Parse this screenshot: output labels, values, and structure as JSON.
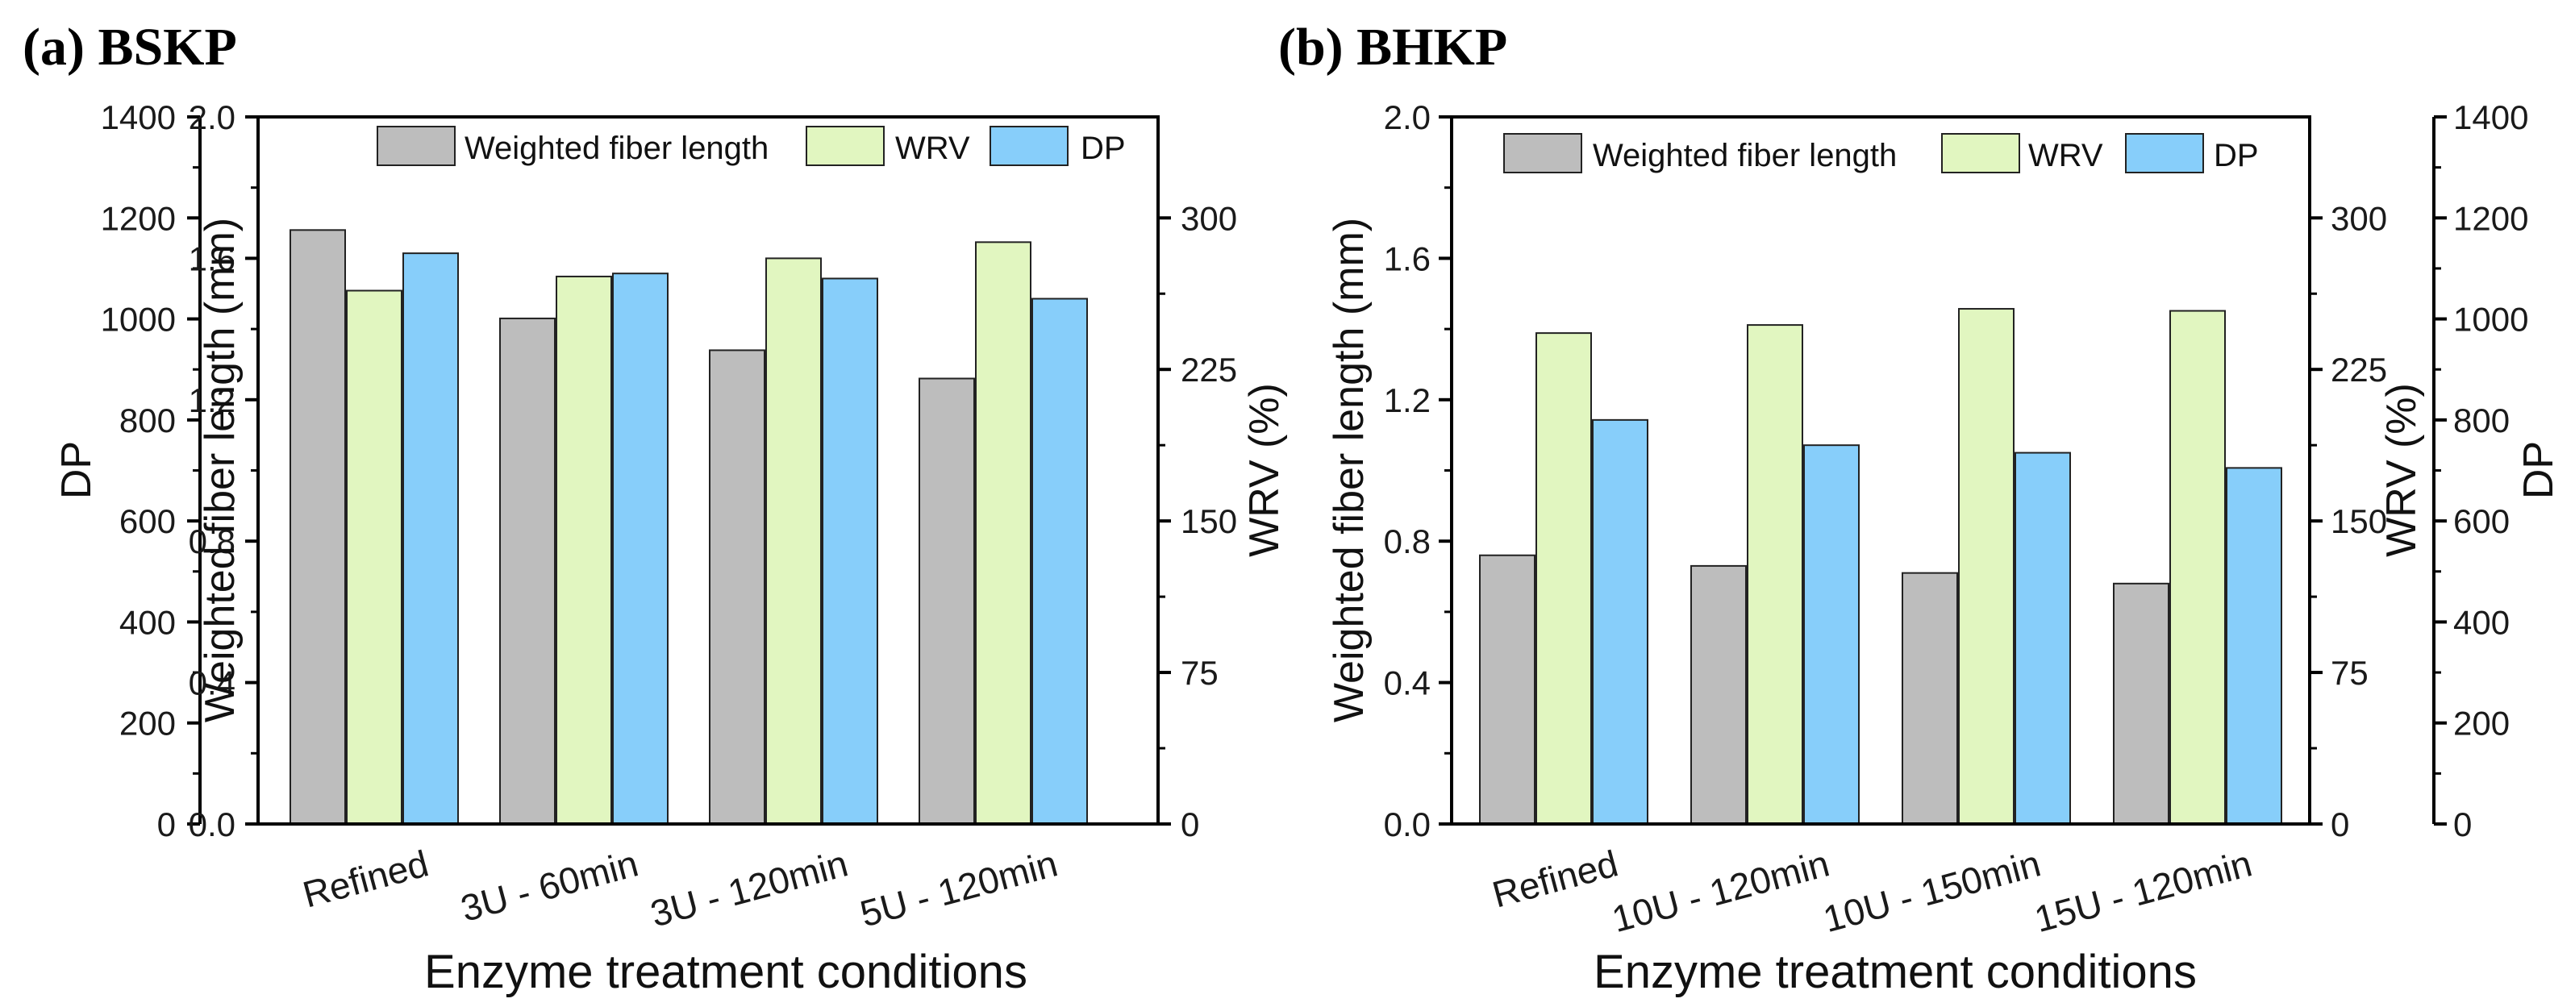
{
  "chart_data": [
    {
      "type": "bar",
      "panel_label": "(a) BSKP",
      "categories": [
        "Refined",
        "3U - 60min",
        "3U - 120min",
        "5U - 120min"
      ],
      "xlabel": "Enzyme treatment conditions",
      "series": [
        {
          "name": "Weighted fiber length",
          "axis": "fiber",
          "color": "#bdbdbd",
          "values": [
            1.68,
            1.43,
            1.34,
            1.26
          ]
        },
        {
          "name": "WRV",
          "axis": "wrv",
          "color": "#e1f6c0",
          "values": [
            264,
            271,
            280,
            288
          ]
        },
        {
          "name": "DP",
          "axis": "dp",
          "color": "#87cefa",
          "values": [
            1130,
            1090,
            1080,
            1040
          ]
        }
      ],
      "axes": {
        "fiber": {
          "label": "Weighted fiber length (mm)",
          "side": "left-inner",
          "ylim": [
            0,
            2.0
          ],
          "ticks": [
            "0.0",
            "0.4",
            "0.8",
            "1.2",
            "1.6",
            "2.0"
          ],
          "tick_values": [
            0,
            0.4,
            0.8,
            1.2,
            1.6,
            2.0
          ]
        },
        "dp": {
          "label": "DP",
          "side": "left-outer",
          "ylim": [
            0,
            1400
          ],
          "ticks": [
            "0",
            "200",
            "400",
            "600",
            "800",
            "1000",
            "1200",
            "1400"
          ],
          "tick_values": [
            0,
            200,
            400,
            600,
            800,
            1000,
            1200,
            1400
          ]
        },
        "wrv": {
          "label": "WRV (%)",
          "side": "right",
          "ylim": [
            0,
            350
          ],
          "ticks": [
            "0",
            "75",
            "150",
            "225",
            "300"
          ],
          "tick_values": [
            0,
            75,
            150,
            225,
            300
          ]
        }
      },
      "legend": [
        "Weighted fiber length",
        "WRV",
        "DP"
      ],
      "legend_position": "top"
    },
    {
      "type": "bar",
      "panel_label": "(b) BHKP",
      "categories": [
        "Refined",
        "10U - 120min",
        "10U - 150min",
        "15U - 120min"
      ],
      "xlabel": "Enzyme treatment conditions",
      "series": [
        {
          "name": "Weighted fiber length",
          "axis": "fiber",
          "color": "#bdbdbd",
          "values": [
            0.76,
            0.73,
            0.71,
            0.68
          ]
        },
        {
          "name": "WRV",
          "axis": "wrv",
          "color": "#e1f6c0",
          "values": [
            243,
            247,
            255,
            254
          ]
        },
        {
          "name": "DP",
          "axis": "dp",
          "color": "#87cefa",
          "values": [
            800,
            750,
            735,
            705
          ]
        }
      ],
      "axes": {
        "fiber": {
          "label": "Weighted fiber length (mm)",
          "side": "left",
          "ylim": [
            0,
            2.0
          ],
          "ticks": [
            "0.0",
            "0.4",
            "0.8",
            "1.2",
            "1.6",
            "2.0"
          ],
          "tick_values": [
            0,
            0.4,
            0.8,
            1.2,
            1.6,
            2.0
          ]
        },
        "wrv": {
          "label": "WRV (%)",
          "side": "right-inner",
          "ylim": [
            0,
            350
          ],
          "ticks": [
            "0",
            "75",
            "150",
            "225",
            "300"
          ],
          "tick_values": [
            0,
            75,
            150,
            225,
            300
          ]
        },
        "dp": {
          "label": "DP",
          "side": "right-outer",
          "ylim": [
            0,
            1400
          ],
          "ticks": [
            "0",
            "200",
            "400",
            "600",
            "800",
            "1000",
            "1200",
            "1400"
          ],
          "tick_values": [
            0,
            200,
            400,
            600,
            800,
            1000,
            1200,
            1400
          ]
        }
      },
      "legend": [
        "Weighted fiber length",
        "WRV",
        "DP"
      ],
      "legend_position": "top"
    }
  ]
}
